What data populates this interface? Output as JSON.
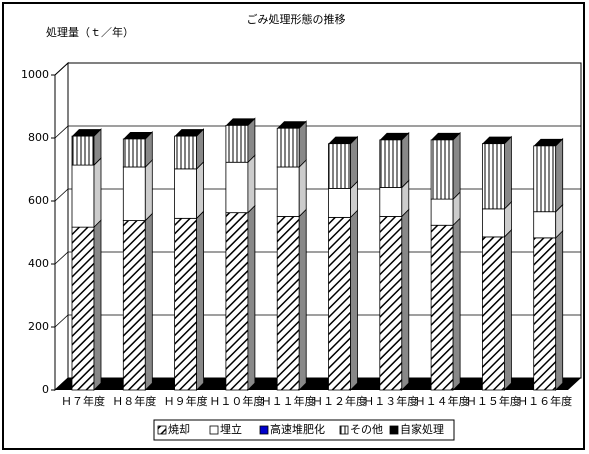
{
  "chart_data": {
    "type": "bar3d-stacked",
    "title": "ごみ処理形態の推移",
    "y_label": "処理量（ｔ／年）",
    "categories": [
      "Ｈ７年度",
      "Ｈ８年度",
      "Ｈ９年度",
      "Ｈ１０年度",
      "Ｈ１１年度",
      "Ｈ１２年度",
      "Ｈ１３年度",
      "Ｈ１４年度",
      "Ｈ１５年度",
      "Ｈ１６年度"
    ],
    "series": [
      {
        "name": "焼却",
        "color": "#ffffff",
        "pattern": "diagonal",
        "values": [
          517,
          538,
          545,
          563,
          551,
          548,
          551,
          523,
          486,
          483
        ]
      },
      {
        "name": "埋立",
        "color": "#ffffff",
        "pattern": "none",
        "values": [
          197,
          170,
          157,
          160,
          157,
          92,
          92,
          83,
          89,
          83
        ]
      },
      {
        "name": "高速堆肥化",
        "color": "#0000cc",
        "pattern": "none",
        "values": [
          0,
          0,
          0,
          0,
          0,
          0,
          0,
          0,
          0,
          0
        ]
      },
      {
        "name": "その他",
        "color": "#ffffff",
        "pattern": "vertical",
        "values": [
          92,
          89,
          104,
          117,
          123,
          142,
          151,
          188,
          207,
          209
        ]
      },
      {
        "name": "自家処理",
        "color": "#000000",
        "pattern": "none",
        "values": [
          0,
          0,
          0,
          0,
          0,
          0,
          0,
          0,
          0,
          0
        ]
      }
    ],
    "ylim": [
      0,
      1000
    ],
    "yticks": [
      0,
      200,
      400,
      600,
      800,
      1000
    ],
    "grid": true
  }
}
